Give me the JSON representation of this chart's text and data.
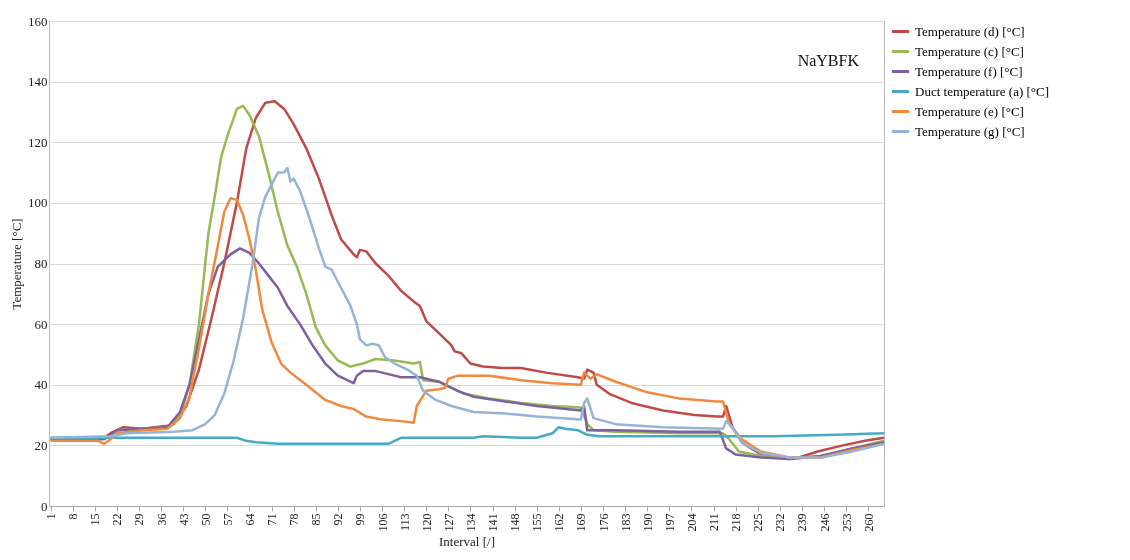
{
  "chart_data": {
    "type": "line",
    "xlabel": "Interval [/]",
    "ylabel": "Temperature [°C]",
    "annotations": [
      "NaYBFK"
    ],
    "xlim": [
      0.5,
      265
    ],
    "xticks": [
      1,
      8,
      15,
      22,
      29,
      36,
      43,
      50,
      57,
      64,
      71,
      78,
      85,
      92,
      99,
      106,
      113,
      120,
      127,
      134,
      141,
      148,
      155,
      162,
      169,
      176,
      183,
      190,
      197,
      204,
      211,
      218,
      225,
      232,
      239,
      246,
      253,
      260
    ],
    "ylim": [
      0,
      160
    ],
    "yticks": [
      0,
      20,
      40,
      60,
      80,
      100,
      120,
      140,
      160
    ],
    "grid": "y",
    "legend": "right",
    "line_style": "solid",
    "series": [
      {
        "name": "Temperature (d) [°C]",
        "color": "#be4b48",
        "x": [
          1,
          15,
          18,
          20,
          24,
          30,
          38,
          40,
          44,
          48,
          52,
          56,
          60,
          63,
          66,
          69,
          72,
          75,
          78,
          82,
          86,
          90,
          93,
          97,
          98,
          99,
          101,
          104,
          108,
          112,
          116,
          118,
          120,
          124,
          128,
          129,
          131,
          134,
          138,
          144,
          150,
          158,
          168,
          170,
          171,
          173,
          174,
          178,
          185,
          195,
          205,
          212,
          214,
          215,
          217,
          220,
          226,
          232,
          238,
          244,
          252,
          259,
          265
        ],
        "values": [
          22,
          22,
          22.5,
          24,
          26,
          25.5,
          26.5,
          27,
          33,
          45,
          62,
          80,
          100,
          118,
          128,
          133,
          133.5,
          131,
          126,
          118,
          108,
          96,
          88,
          83,
          82,
          84.5,
          84,
          80,
          76,
          71,
          67.5,
          66,
          61,
          57,
          53,
          51,
          50.5,
          47,
          46,
          45.5,
          45.5,
          44,
          42.5,
          42,
          45,
          44,
          40,
          37,
          34,
          31.5,
          30,
          29.5,
          29.5,
          33,
          26,
          21,
          17,
          16,
          16,
          18,
          20,
          21.5,
          22.5
        ]
      },
      {
        "name": "Temperature (c) [°C]",
        "color": "#98b954",
        "x": [
          22,
          38,
          42,
          45,
          48,
          51,
          53,
          55,
          57,
          60,
          62,
          64,
          67,
          70,
          73,
          76,
          79,
          82,
          85,
          88,
          92,
          96,
          100,
          104,
          110,
          116,
          118,
          119,
          124,
          128,
          132,
          140,
          150,
          160,
          169,
          171,
          173,
          180,
          200,
          214,
          216,
          219,
          226,
          235,
          245,
          255,
          265
        ],
        "values": [
          25,
          26,
          30,
          40,
          60,
          90,
          102,
          115,
          122,
          131,
          132,
          129,
          122,
          110,
          97,
          86,
          79,
          70,
          59,
          53,
          48,
          46,
          47,
          48.5,
          48,
          47,
          47.5,
          41.5,
          41,
          39,
          37,
          35.5,
          34,
          33,
          32.5,
          27,
          25,
          24.5,
          24,
          24,
          22,
          18,
          16.5,
          15.5,
          16.5,
          19,
          21.5
        ]
      },
      {
        "name": "Temperature (f) [°C]",
        "color": "#7d60a0",
        "x": [
          1,
          18,
          22,
          38,
          42,
          45,
          48,
          51,
          54,
          58,
          61,
          64,
          67,
          70,
          73,
          76,
          80,
          84,
          88,
          92,
          96,
          97,
          98,
          100,
          104,
          108,
          112,
          118,
          124,
          130,
          135,
          145,
          155,
          169,
          170,
          171,
          180,
          200,
          213,
          215,
          218,
          226,
          235,
          245,
          255,
          265
        ],
        "values": [
          22,
          22,
          25,
          26,
          31,
          40,
          55,
          70,
          79,
          83,
          85,
          83.5,
          80,
          76,
          72,
          66,
          60,
          53,
          47,
          43,
          41,
          40.5,
          43,
          44.5,
          44.5,
          43.5,
          42.5,
          42.5,
          41,
          38,
          36,
          34.5,
          33,
          31.5,
          33,
          25,
          25,
          24.5,
          24.5,
          19,
          17,
          16,
          15.5,
          16.5,
          19,
          21
        ]
      },
      {
        "name": "Duct temperature (a) [°C]",
        "color": "#46aac5",
        "x": [
          1,
          60,
          63,
          66,
          73,
          108,
          110,
          112,
          125,
          135,
          138,
          150,
          155,
          160,
          162,
          164,
          168,
          171,
          175,
          190,
          215,
          230,
          250,
          265
        ],
        "values": [
          22.5,
          22.5,
          21.5,
          21,
          20.5,
          20.5,
          21.5,
          22.5,
          22.5,
          22.5,
          23,
          22.5,
          22.5,
          24,
          26,
          25.5,
          25,
          23.5,
          23,
          23,
          23,
          23,
          23.5,
          24
        ]
      },
      {
        "name": "Temperature (e) [°C]",
        "color": "#f0893c",
        "x": [
          1,
          16,
          18,
          20,
          22,
          30,
          38,
          42,
          45,
          48,
          51,
          54,
          56,
          58,
          60,
          62,
          64,
          66,
          68,
          71,
          74,
          77,
          82,
          88,
          93,
          97,
          101,
          106,
          112,
          116,
          117,
          120,
          124,
          126,
          127,
          130,
          140,
          150,
          160,
          169,
          170,
          172,
          174,
          180,
          190,
          200,
          212,
          214,
          216,
          220,
          226,
          235,
          245,
          255,
          265
        ],
        "values": [
          21.5,
          21.5,
          20.5,
          22,
          24,
          25,
          25.5,
          29,
          36,
          52,
          70,
          86,
          97,
          101.5,
          101,
          96,
          88,
          78,
          65,
          54,
          47,
          44,
          40,
          35,
          33,
          32,
          29.5,
          28.5,
          28,
          27.5,
          33,
          38,
          38.5,
          39,
          42,
          43,
          43,
          41.5,
          40.5,
          40,
          44,
          42,
          43.5,
          41,
          37.5,
          35.5,
          34.5,
          34.5,
          27,
          22,
          18,
          16,
          16,
          18.5,
          20.5
        ]
      },
      {
        "name": "Temperature (g) [°C]",
        "color": "#95b3d7",
        "x": [
          1,
          20,
          25,
          40,
          46,
          50,
          53,
          56,
          59,
          62,
          65,
          67,
          69,
          71,
          73,
          75,
          76,
          77,
          78,
          80,
          83,
          86,
          88,
          90,
          93,
          96,
          98,
          99,
          101,
          103,
          105,
          107,
          110,
          114,
          117,
          119,
          123,
          128,
          135,
          145,
          155,
          169,
          170,
          171,
          173,
          180,
          195,
          214,
          215,
          217,
          220,
          226,
          235,
          245,
          255,
          265
        ],
        "values": [
          22.5,
          23,
          24,
          24.5,
          25,
          27,
          30,
          37,
          48,
          62,
          80,
          95,
          102,
          106,
          110,
          110,
          111.5,
          107,
          108,
          104,
          95,
          85,
          79,
          78,
          72,
          66,
          60,
          55,
          53,
          53.5,
          53,
          49,
          47,
          45,
          43,
          38,
          35,
          33,
          31,
          30.5,
          29.5,
          28.5,
          34,
          35.5,
          29,
          27,
          26,
          25.5,
          28,
          26,
          21,
          17.5,
          16,
          16,
          18,
          20.5
        ]
      }
    ]
  }
}
